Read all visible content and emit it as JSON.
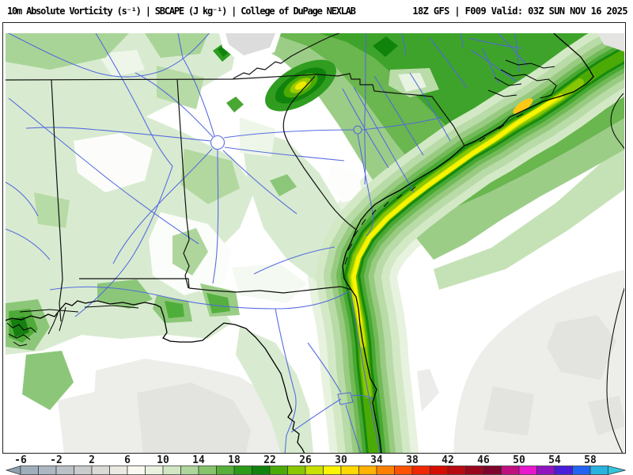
{
  "header": {
    "left_title": "10m Absolute Vorticity (s⁻¹) | SBCAPE (J kg⁻¹) | College of DuPage NEXLAB",
    "right_title": "18Z GFS | F009 Valid: 03Z SUN NOV 16 2025"
  },
  "legend": {
    "values": [
      -6,
      -2,
      2,
      6,
      10,
      14,
      18,
      22,
      26,
      30,
      34,
      38,
      42,
      46,
      50,
      54,
      58
    ],
    "units_per_cell": 2,
    "tick_step": 4,
    "cells": [
      "#a0aebc",
      "#adb7c2",
      "#bac1c7",
      "#c9cccd",
      "#d9dad5",
      "#eaeae3",
      "#f9f9f2",
      "#e8f2df",
      "#d1e7c3",
      "#aed69c",
      "#85c46b",
      "#55af38",
      "#2b9a19",
      "#0f830c",
      "#4aaa06",
      "#8ac703",
      "#c8e100",
      "#faf400",
      "#ffd800",
      "#ffb200",
      "#ff8000",
      "#ff5200",
      "#f02800",
      "#d60e02",
      "#b80a10",
      "#9a061e",
      "#7e052c",
      "#c01080",
      "#e816cc",
      "#9014c0",
      "#4a1ed8",
      "#2464f4",
      "#28b2e0"
    ],
    "left_arrow_color": "#8fa0b0",
    "right_arrow_color": "#34c4dc"
  },
  "map": {
    "key_colors": {
      "land_light_green": "#d8ebd0",
      "medium_green": "#a9d497",
      "dark_green_ring": "#17890f",
      "chartreuse": "#8ac703",
      "band_core_yellow": "#faf400",
      "orange_spot": "#ffc814",
      "ocean_gray": "#ededea",
      "water_road_blue": "#5166e0",
      "border_black": "#111111"
    }
  }
}
